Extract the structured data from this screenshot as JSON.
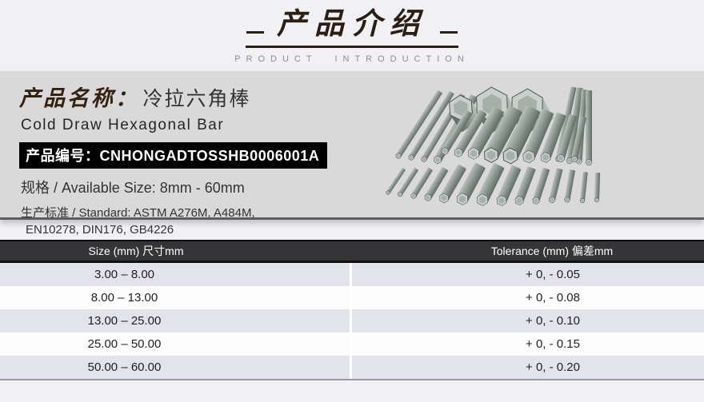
{
  "header": {
    "title": "产品介绍",
    "subtitle": "PRODUCT INTRODUCTION"
  },
  "product": {
    "name_label": "产品名称：",
    "name": "冷拉六角棒",
    "name_en": "Cold Draw Hexagonal Bar",
    "code_label": "产品编号：",
    "code": "CNHONGADTOSSHB0006001A",
    "size_spec": "规格 / Available Size: 8mm - 60mm",
    "standard_line1": "生产标准 / Standard: ASTM A276M, A484M,",
    "standard_line2": "EN10278, DIN176, GB4226"
  },
  "tolerance_table": {
    "columns": [
      "Size (mm) 尺寸mm",
      "Tolerance (mm) 偏差mm"
    ],
    "rows": [
      [
        "3.00 – 8.00",
        "+ 0, - 0.05"
      ],
      [
        "8.00 – 13.00",
        "+ 0, - 0.08"
      ],
      [
        "13.00 – 25.00",
        "+ 0, - 0.10"
      ],
      [
        "25.00 – 50.00",
        "+ 0, - 0.15"
      ],
      [
        "50.00 – 60.00",
        "+ 0, - 0.20"
      ]
    ]
  },
  "colors": {
    "ink": "#2b1e12",
    "page-bg": "#f1f1f5",
    "band-bg": "#d9d9d9",
    "table-head-bg": "#353538",
    "row-stripe": "#e3e3ec",
    "row-white": "#fdfdfe",
    "badge-bg": "#000000",
    "badge-text": "#ffffff"
  }
}
